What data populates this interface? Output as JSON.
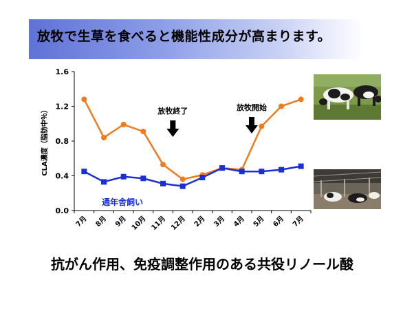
{
  "title": "放牧で生草を食べると機能性成分が高まります。",
  "footer_text": "抗がん作用、免疫調整作用のある共役リノール酸",
  "colors": {
    "grazing_series": "#f07b1e",
    "housed_series": "#1a2fd6",
    "housed_label": "#1a2fd6"
  },
  "chart_data": {
    "type": "line",
    "ylabel": "CLA濃度（脂肪中％）",
    "xlabel": "",
    "ylim": [
      0.0,
      1.6
    ],
    "yticks": [
      "0.0",
      "0.4",
      "0.8",
      "1.2",
      "1.6"
    ],
    "categories": [
      "7月",
      "8月",
      "9月",
      "10月",
      "11月",
      "12月",
      "2月",
      "3月",
      "4月",
      "5月",
      "6月",
      "7月"
    ],
    "grid": false,
    "series": [
      {
        "name": "",
        "color": "#f07b1e",
        "marker": "circle",
        "values": [
          1.28,
          0.84,
          0.99,
          0.91,
          0.53,
          0.36,
          0.41,
          0.49,
          0.47,
          0.97,
          1.2,
          1.28
        ]
      },
      {
        "name": "通年舎飼い",
        "color": "#1a2fd6",
        "marker": "square",
        "values": [
          0.45,
          0.33,
          0.39,
          0.37,
          0.31,
          0.28,
          0.38,
          0.49,
          0.45,
          0.45,
          0.47,
          0.51
        ]
      }
    ],
    "annotations": [
      {
        "text": "放牧終了",
        "arrow": "down",
        "between_categories": [
          4,
          5
        ]
      },
      {
        "text": "放牧開始",
        "arrow": "down",
        "between_categories": [
          8,
          9
        ]
      }
    ]
  },
  "photos": {
    "pasture_icon": "cows-grazing-photo",
    "barn_icon": "cows-in-barn-photo"
  }
}
